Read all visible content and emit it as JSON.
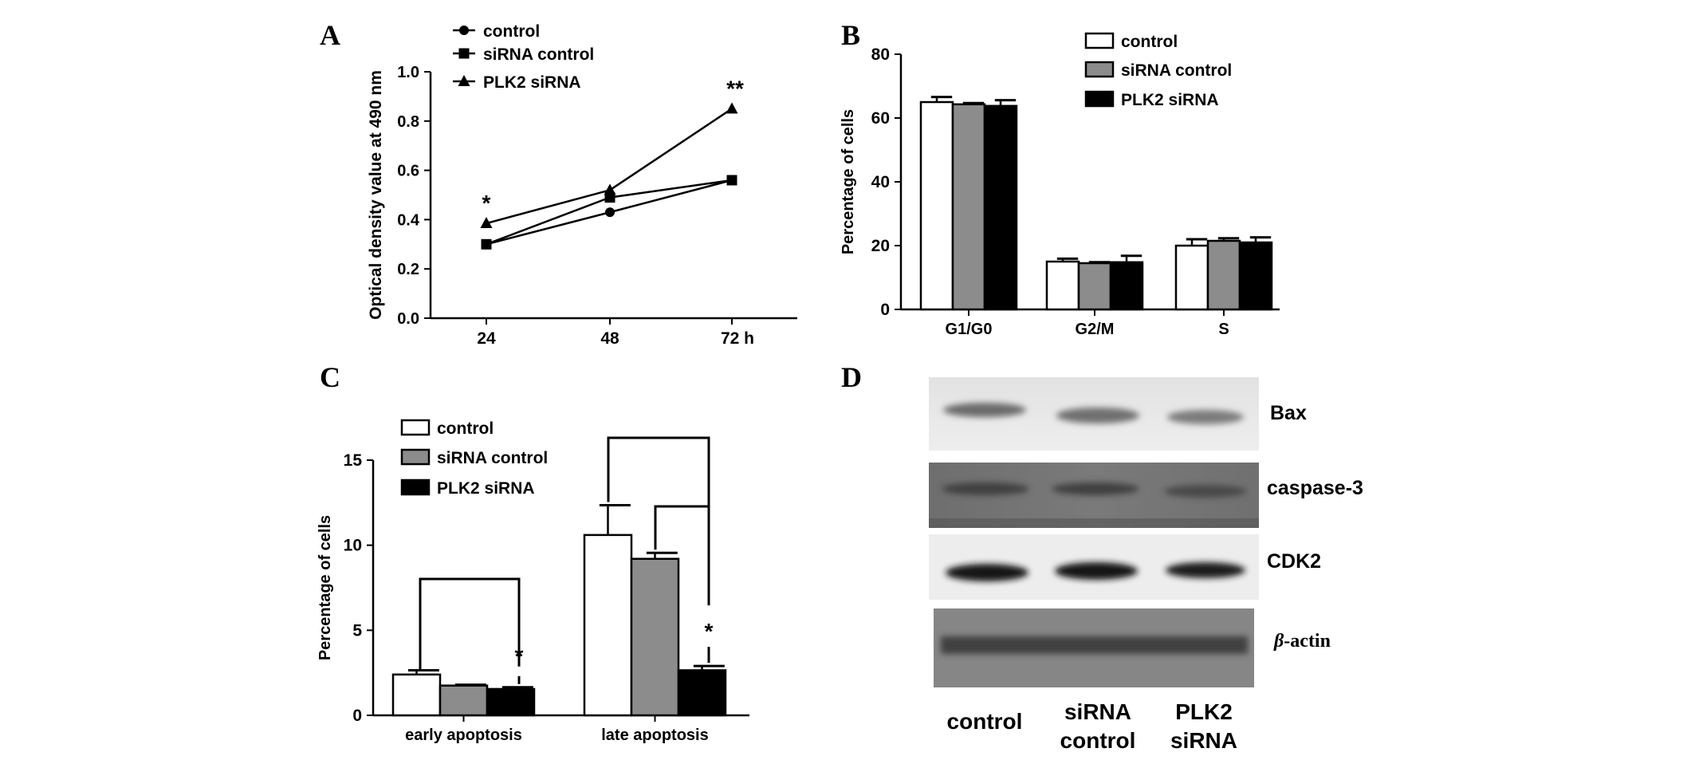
{
  "colors": {
    "axis": "#000000",
    "control": "#ffffff",
    "sirna_control": "#8c8c8c",
    "plk2_sirna": "#000000"
  },
  "panels": {
    "a": "A",
    "b": "B",
    "c": "C",
    "d": "D"
  },
  "chart_data": [
    {
      "panel": "A",
      "type": "line",
      "ylabel": "Optical density value at 490 nm",
      "xlabel": "",
      "x": [
        "24",
        "48",
        "72 h"
      ],
      "ylim": [
        0.0,
        1.0
      ],
      "yticks": [
        "0.0",
        "0.2",
        "0.4",
        "0.6",
        "0.8",
        "1.0"
      ],
      "grid": false,
      "legend_position": "top-left",
      "series": [
        {
          "name": "control",
          "marker": "circle",
          "values": [
            0.3,
            0.43,
            0.56
          ]
        },
        {
          "name": "siRNA control",
          "marker": "square",
          "values": [
            0.3,
            0.49,
            0.56
          ]
        },
        {
          "name": "PLK2 siRNA",
          "marker": "triangle",
          "values": [
            0.385,
            0.52,
            0.85
          ]
        }
      ],
      "annotations": [
        {
          "text": "*",
          "x": "24",
          "y": 0.385
        },
        {
          "text": "**",
          "x": "72 h",
          "y": 0.85
        }
      ]
    },
    {
      "panel": "B",
      "type": "bar",
      "ylabel": "Percentage of cells",
      "xlabel": "",
      "categories": [
        "G1/G0",
        "G2/M",
        "S"
      ],
      "ylim": [
        0,
        80
      ],
      "yticks": [
        "0",
        "20",
        "40",
        "60",
        "80"
      ],
      "grid": false,
      "legend_position": "top-right",
      "series": [
        {
          "name": "control",
          "values": [
            65,
            15,
            20
          ],
          "errors": [
            1.6,
            0.9,
            2.0
          ]
        },
        {
          "name": "siRNA control",
          "values": [
            64.3,
            14.5,
            21.5
          ],
          "errors": [
            0.4,
            0.3,
            0.8
          ]
        },
        {
          "name": "PLK2 siRNA",
          "values": [
            63.8,
            14.8,
            21
          ],
          "errors": [
            1.8,
            2.0,
            1.6
          ]
        }
      ]
    },
    {
      "panel": "C",
      "type": "bar",
      "ylabel": "Percentage of cells",
      "xlabel": "",
      "categories": [
        "early apoptosis",
        "late apoptosis"
      ],
      "ylim": [
        0,
        15
      ],
      "yticks": [
        "0",
        "5",
        "10",
        "15"
      ],
      "grid": false,
      "legend_position": "top-left",
      "series": [
        {
          "name": "control",
          "values": [
            2.4,
            10.6
          ],
          "errors": [
            0.25,
            1.75
          ]
        },
        {
          "name": "siRNA control",
          "values": [
            1.75,
            9.2
          ],
          "errors": [
            0.05,
            0.35
          ]
        },
        {
          "name": "PLK2 siRNA",
          "values": [
            1.55,
            2.65
          ],
          "errors": [
            0.1,
            0.25
          ]
        }
      ],
      "annotations": [
        {
          "text": "*",
          "category": "early apoptosis"
        },
        {
          "text": "*",
          "category": "late apoptosis"
        }
      ]
    }
  ],
  "western_blot": {
    "panel": "D",
    "bands": [
      {
        "label": "Bax",
        "italic_prefix": ""
      },
      {
        "label": "caspase-3",
        "italic_prefix": ""
      },
      {
        "label": "CDK2",
        "italic_prefix": ""
      },
      {
        "label": "-actin",
        "italic_prefix": "β"
      }
    ],
    "lanes": [
      {
        "line1": "control",
        "line2": ""
      },
      {
        "line1": "siRNA",
        "line2": "control"
      },
      {
        "line1": "PLK2",
        "line2": "siRNA"
      }
    ]
  }
}
